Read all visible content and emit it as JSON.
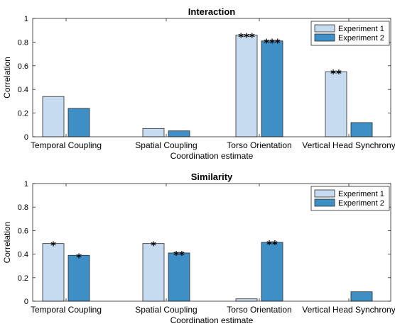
{
  "chart_data": [
    {
      "type": "bar",
      "title": "Interaction",
      "xlabel": "Coordination estimate",
      "ylabel": "Correlation",
      "ylim": [
        0,
        1
      ],
      "yticks": [
        "0",
        "0.2",
        "0.4",
        "0.6",
        "0.8",
        "1"
      ],
      "categories": [
        "Temporal Coupling",
        "Spatial Coupling",
        "Torso Orientation",
        "Vertical Head Synchrony"
      ],
      "series": [
        {
          "name": "Experiment 1",
          "color": "#c6daf0",
          "values": [
            0.34,
            0.07,
            0.86,
            0.55
          ],
          "significance": [
            "",
            "",
            "***",
            "**"
          ]
        },
        {
          "name": "Experiment 2",
          "color": "#3f8fc7",
          "values": [
            0.24,
            0.05,
            0.81,
            0.12
          ],
          "significance": [
            "",
            "",
            "***",
            ""
          ]
        }
      ],
      "legend": "top-right",
      "grid": false
    },
    {
      "type": "bar",
      "title": "Similarity",
      "xlabel": "Coordination estimate",
      "ylabel": "Correlation",
      "ylim": [
        0,
        1
      ],
      "yticks": [
        "0",
        "0.2",
        "0.4",
        "0.6",
        "0.8",
        "1"
      ],
      "categories": [
        "Temporal Coupling",
        "Spatial Coupling",
        "Torso Orientation",
        "Vertical Head Synchrony"
      ],
      "series": [
        {
          "name": "Experiment 1",
          "color": "#c6daf0",
          "values": [
            0.49,
            0.49,
            0.02,
            0.0
          ],
          "significance": [
            "*",
            "*",
            "",
            ""
          ]
        },
        {
          "name": "Experiment 2",
          "color": "#3f8fc7",
          "values": [
            0.39,
            0.41,
            0.5,
            0.08
          ],
          "significance": [
            "*",
            "**",
            "**",
            ""
          ]
        }
      ],
      "legend": "top-right",
      "grid": false
    }
  ]
}
